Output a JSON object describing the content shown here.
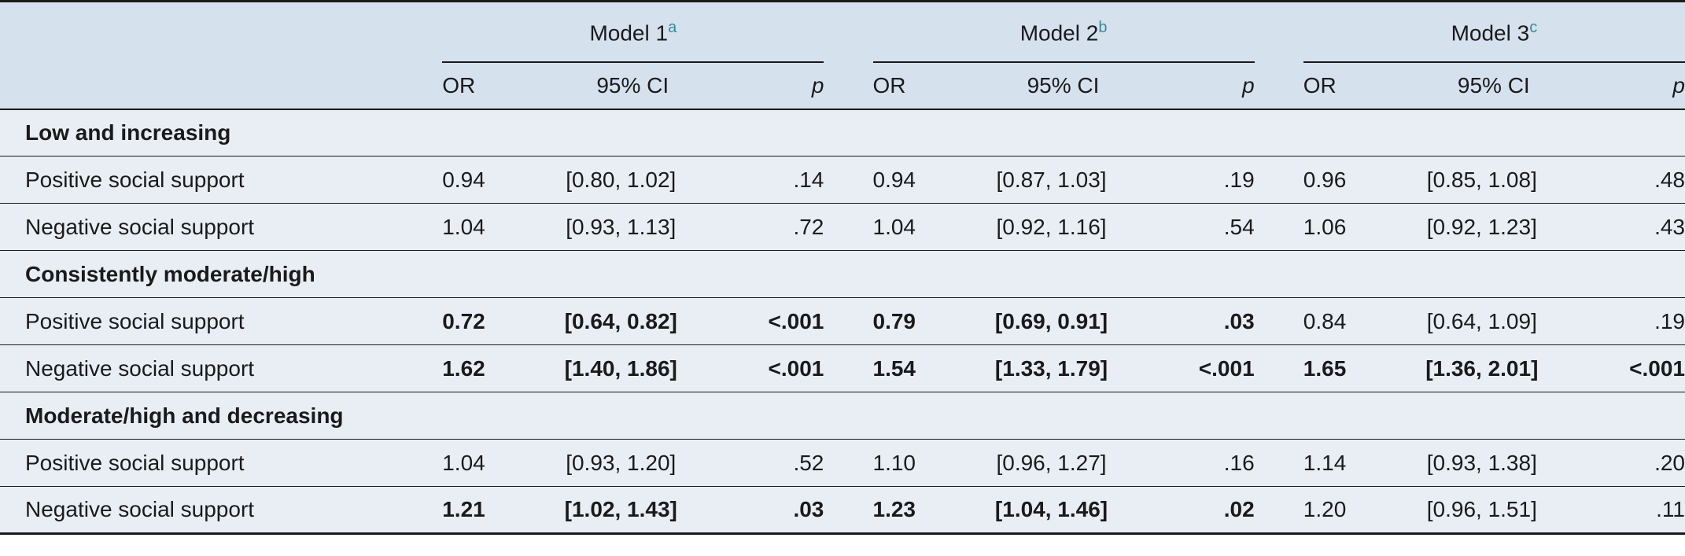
{
  "header": {
    "models": [
      {
        "label": "Model 1",
        "sup": "a"
      },
      {
        "label": "Model 2",
        "sup": "b"
      },
      {
        "label": "Model 3",
        "sup": "c"
      }
    ],
    "or_label": "OR",
    "ci_label": "95% CI",
    "p_label": "p"
  },
  "sections": [
    {
      "title": "Low and increasing",
      "rows": [
        {
          "label": "Positive social support",
          "m1": {
            "or": "0.94",
            "ci": "[0.80, 1.02]",
            "p": ".14",
            "bold": false
          },
          "m2": {
            "or": "0.94",
            "ci": "[0.87, 1.03]",
            "p": ".19",
            "bold": false
          },
          "m3": {
            "or": "0.96",
            "ci": "[0.85, 1.08]",
            "p": ".48",
            "bold": false
          }
        },
        {
          "label": "Negative social support",
          "m1": {
            "or": "1.04",
            "ci": "[0.93, 1.13]",
            "p": ".72",
            "bold": false
          },
          "m2": {
            "or": "1.04",
            "ci": "[0.92, 1.16]",
            "p": ".54",
            "bold": false
          },
          "m3": {
            "or": "1.06",
            "ci": "[0.92, 1.23]",
            "p": ".43",
            "bold": false
          }
        }
      ]
    },
    {
      "title": "Consistently moderate/high",
      "rows": [
        {
          "label": "Positive social support",
          "m1": {
            "or": "0.72",
            "ci": "[0.64, 0.82]",
            "p": "<.001",
            "bold": true
          },
          "m2": {
            "or": "0.79",
            "ci": "[0.69, 0.91]",
            "p": ".03",
            "bold": true
          },
          "m3": {
            "or": "0.84",
            "ci": "[0.64, 1.09]",
            "p": ".19",
            "bold": false
          }
        },
        {
          "label": "Negative social support",
          "m1": {
            "or": "1.62",
            "ci": "[1.40, 1.86]",
            "p": "<.001",
            "bold": true
          },
          "m2": {
            "or": "1.54",
            "ci": "[1.33, 1.79]",
            "p": "<.001",
            "bold": true
          },
          "m3": {
            "or": "1.65",
            "ci": "[1.36, 2.01]",
            "p": "<.001",
            "bold": true
          }
        }
      ]
    },
    {
      "title": "Moderate/high and decreasing",
      "rows": [
        {
          "label": "Positive social support",
          "m1": {
            "or": "1.04",
            "ci": "[0.93, 1.20]",
            "p": ".52",
            "bold": false
          },
          "m2": {
            "or": "1.10",
            "ci": "[0.96, 1.27]",
            "p": ".16",
            "bold": false
          },
          "m3": {
            "or": "1.14",
            "ci": "[0.93, 1.38]",
            "p": ".20",
            "bold": false
          }
        },
        {
          "label": "Negative social support",
          "m1": {
            "or": "1.21",
            "ci": "[1.02, 1.43]",
            "p": ".03",
            "bold": true
          },
          "m2": {
            "or": "1.23",
            "ci": "[1.04, 1.46]",
            "p": ".02",
            "bold": true
          },
          "m3": {
            "or": "1.20",
            "ci": "[0.96, 1.51]",
            "p": ".11",
            "bold": false
          }
        }
      ]
    }
  ]
}
